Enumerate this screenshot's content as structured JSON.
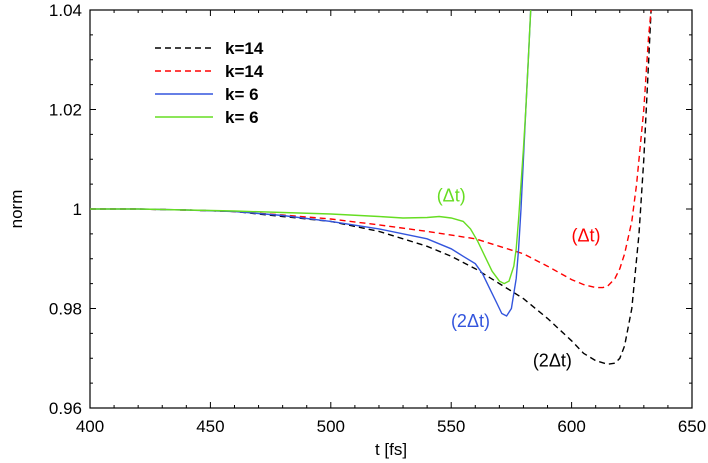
{
  "chart_data": {
    "type": "line",
    "title": "",
    "xlabel": "t [fs]",
    "ylabel": "norm",
    "xlim": [
      400,
      650
    ],
    "ylim": [
      0.96,
      1.04
    ],
    "xticks": [
      400,
      450,
      500,
      550,
      600,
      650
    ],
    "xtick_labels": [
      "400",
      "450",
      "500",
      "550",
      "600",
      "650"
    ],
    "yticks": [
      0.96,
      0.98,
      1.0,
      1.02,
      1.04
    ],
    "ytick_labels": [
      "0.96",
      "0.98",
      "1",
      "1.02",
      "1.04"
    ],
    "grid": false,
    "legend_position": "top-left",
    "series": [
      {
        "name": "k=14",
        "color": "#000000",
        "dash": "dashed",
        "x": [
          400,
          420,
          440,
          460,
          480,
          500,
          510,
          520,
          530,
          540,
          550,
          560,
          570,
          580,
          590,
          600,
          605,
          610,
          615,
          618,
          620,
          622,
          625,
          628,
          630,
          632,
          633
        ],
        "y": [
          1.0,
          1.0,
          0.9998,
          0.9995,
          0.9985,
          0.9975,
          0.9965,
          0.9955,
          0.994,
          0.9925,
          0.9905,
          0.988,
          0.985,
          0.982,
          0.978,
          0.9735,
          0.971,
          0.9695,
          0.9688,
          0.969,
          0.97,
          0.9725,
          0.98,
          0.995,
          1.01,
          1.03,
          1.04
        ]
      },
      {
        "name": "k=14",
        "color": "#ff0000",
        "dash": "dashed",
        "x": [
          400,
          420,
          440,
          460,
          480,
          500,
          520,
          540,
          560,
          570,
          580,
          590,
          600,
          605,
          610,
          613,
          615,
          618,
          620,
          622,
          625,
          627,
          630,
          632,
          633
        ],
        "y": [
          1.0,
          1.0,
          0.9998,
          0.9995,
          0.9988,
          0.998,
          0.9968,
          0.9955,
          0.994,
          0.9925,
          0.991,
          0.9885,
          0.9858,
          0.9848,
          0.9842,
          0.9842,
          0.9845,
          0.986,
          0.988,
          0.991,
          0.9975,
          1.005,
          1.02,
          1.035,
          1.04
        ]
      },
      {
        "name": "k= 6",
        "color": "#3355dd",
        "dash": "solid",
        "x": [
          400,
          420,
          440,
          460,
          480,
          500,
          520,
          540,
          550,
          555,
          560,
          563,
          566,
          569,
          571,
          573,
          575,
          577,
          578,
          579,
          580,
          581,
          582,
          583
        ],
        "y": [
          1.0,
          1.0,
          0.9998,
          0.9995,
          0.9987,
          0.9975,
          0.996,
          0.994,
          0.992,
          0.9905,
          0.989,
          0.987,
          0.984,
          0.981,
          0.979,
          0.9785,
          0.98,
          0.986,
          0.992,
          1.0,
          1.01,
          1.02,
          1.03,
          1.04
        ]
      },
      {
        "name": "k= 6",
        "color": "#66dd22",
        "dash": "solid",
        "x": [
          400,
          420,
          440,
          460,
          480,
          500,
          520,
          530,
          540,
          545,
          550,
          555,
          558,
          561,
          564,
          567,
          570,
          572,
          574,
          576,
          577,
          578,
          579,
          580,
          581,
          582,
          583
        ],
        "y": [
          1.0,
          1.0,
          0.9998,
          0.9996,
          0.9993,
          0.999,
          0.9985,
          0.9982,
          0.9983,
          0.9985,
          0.9982,
          0.9975,
          0.996,
          0.9935,
          0.9905,
          0.9875,
          0.9855,
          0.985,
          0.9855,
          0.9885,
          0.992,
          0.998,
          1.005,
          1.012,
          1.02,
          1.03,
          1.04
        ]
      }
    ],
    "annotations": [
      {
        "text": "(Δt)",
        "x": 550,
        "y": 1.0015,
        "color": "#66dd22"
      },
      {
        "text": "(Δt)",
        "x": 606,
        "y": 0.9935,
        "color": "#ff0000"
      },
      {
        "text": "(2Δt)",
        "x": 558,
        "y": 0.9763,
        "color": "#3355dd"
      },
      {
        "text": "(2Δt)",
        "x": 592,
        "y": 0.9683,
        "color": "#000000"
      }
    ]
  }
}
